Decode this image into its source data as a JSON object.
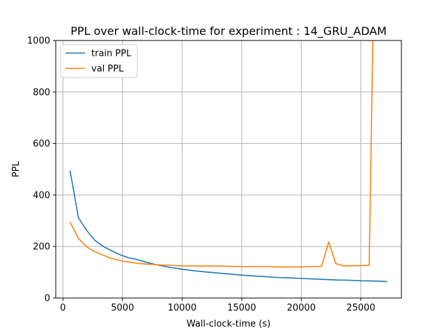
{
  "chart_data": {
    "type": "line",
    "title": "PPL over wall-clock-time for experiment : 14_GRU_ADAM",
    "xlabel": "Wall-clock-time (s)",
    "ylabel": "PPL",
    "xlim": [
      -600,
      28400
    ],
    "ylim": [
      0,
      1000
    ],
    "xticks": [
      0,
      5000,
      10000,
      15000,
      20000,
      25000
    ],
    "yticks": [
      0,
      200,
      400,
      600,
      800,
      1000
    ],
    "grid": true,
    "legend_position": "upper-left",
    "series": [
      {
        "name": "train PPL",
        "color": "#1f77b4",
        "points": [
          [
            600,
            495
          ],
          [
            1300,
            312
          ],
          [
            2000,
            262
          ],
          [
            2700,
            223
          ],
          [
            3400,
            200
          ],
          [
            4100,
            183
          ],
          [
            4800,
            168
          ],
          [
            5500,
            156
          ],
          [
            6200,
            150
          ],
          [
            6900,
            140
          ],
          [
            7600,
            132
          ],
          [
            8300,
            125
          ],
          [
            9000,
            119
          ],
          [
            10000,
            112
          ],
          [
            11000,
            106
          ],
          [
            12000,
            101
          ],
          [
            13000,
            97
          ],
          [
            14000,
            93
          ],
          [
            15000,
            89
          ],
          [
            16000,
            86
          ],
          [
            17000,
            83
          ],
          [
            18000,
            80
          ],
          [
            19000,
            78
          ],
          [
            20000,
            76
          ],
          [
            21000,
            74
          ],
          [
            22000,
            72
          ],
          [
            23000,
            70
          ],
          [
            24000,
            69
          ],
          [
            25000,
            67
          ],
          [
            26000,
            66
          ],
          [
            27200,
            64
          ]
        ]
      },
      {
        "name": "val PPL",
        "color": "#ff7f0e",
        "points": [
          [
            600,
            295
          ],
          [
            1300,
            232
          ],
          [
            2000,
            198
          ],
          [
            2700,
            180
          ],
          [
            3400,
            166
          ],
          [
            4100,
            153
          ],
          [
            4800,
            145
          ],
          [
            5500,
            140
          ],
          [
            6200,
            135
          ],
          [
            6900,
            132
          ],
          [
            7600,
            130
          ],
          [
            8300,
            128
          ],
          [
            9000,
            127
          ],
          [
            10000,
            125
          ],
          [
            11000,
            124
          ],
          [
            12000,
            124
          ],
          [
            13000,
            124
          ],
          [
            14000,
            123
          ],
          [
            15000,
            122
          ],
          [
            16000,
            122
          ],
          [
            17000,
            122
          ],
          [
            18000,
            121
          ],
          [
            19000,
            121
          ],
          [
            20000,
            121
          ],
          [
            21000,
            122
          ],
          [
            21700,
            123
          ],
          [
            22300,
            218
          ],
          [
            22900,
            134
          ],
          [
            23500,
            125
          ],
          [
            24200,
            125
          ],
          [
            25000,
            126
          ],
          [
            25700,
            127
          ],
          [
            26000,
            1000
          ]
        ]
      }
    ]
  }
}
